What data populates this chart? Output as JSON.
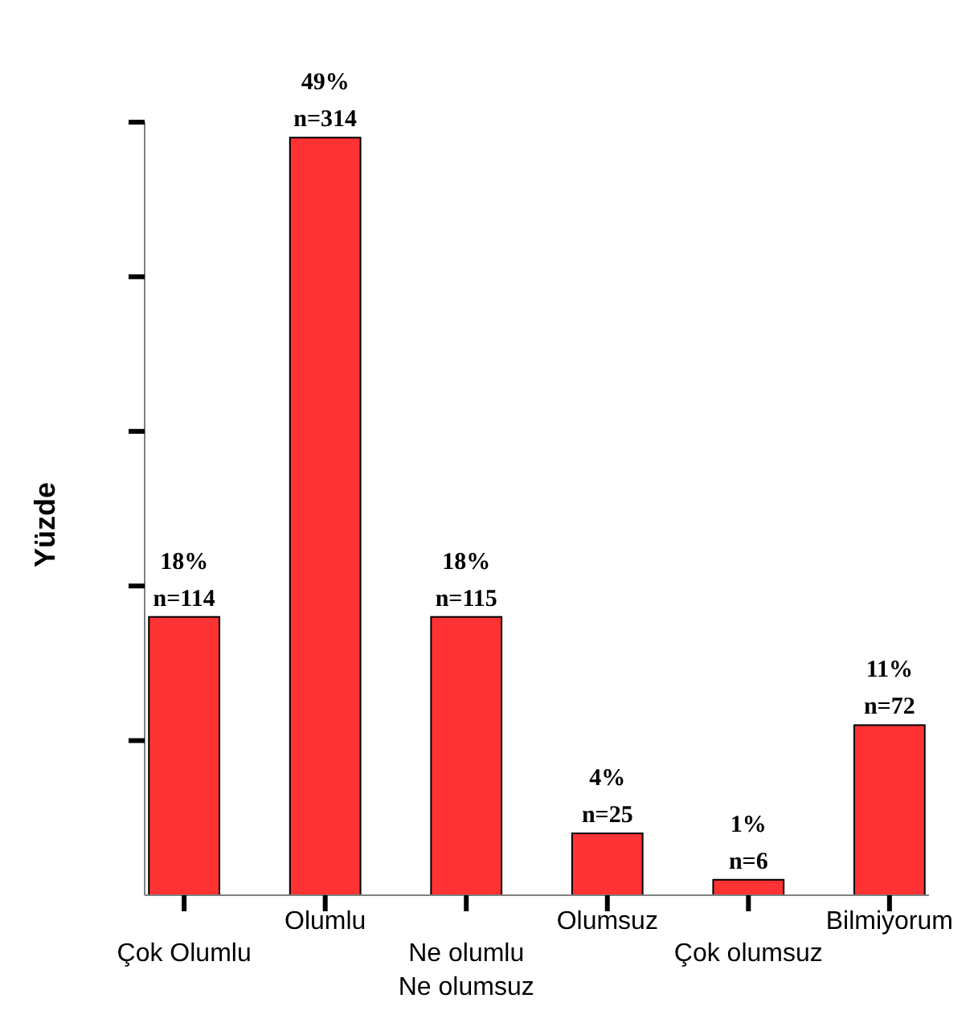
{
  "chart_data": {
    "type": "bar",
    "ylabel": "Yüzde",
    "categories": [
      "Çok Olumlu",
      "Olumlu",
      "Ne olumlu\nNe olumsuz",
      "Olumsuz",
      "Çok olumsuz",
      "Bilmiyorum"
    ],
    "values": [
      18,
      49,
      18,
      4,
      1,
      11
    ],
    "value_labels": [
      "18%",
      "49%",
      "18%",
      "4%",
      "1%",
      "11%"
    ],
    "annotations": [
      {
        "text": "n=114",
        "x": "Çok Olumlu",
        "y": 18
      },
      {
        "text": "n=314",
        "x": "Olumlu",
        "y": 49
      },
      {
        "text": "n=115",
        "x": "Ne olumlu\nNe olumsuz",
        "y": 18
      },
      {
        "text": "n=25",
        "x": "Olumsuz",
        "y": 4
      },
      {
        "text": "n=6",
        "x": "Çok olumsuz",
        "y": 1
      },
      {
        "text": "n=72",
        "x": "Bilmiyorum",
        "y": 11
      }
    ],
    "color": "#ff3333",
    "ylim": [
      0,
      50
    ],
    "yticks": [
      {
        "value": 10,
        "label": null
      },
      {
        "value": 20,
        "label": null
      },
      {
        "value": 30,
        "label": null
      },
      {
        "value": 40,
        "label": null
      },
      {
        "value": 50,
        "label": null
      }
    ],
    "grid": false
  }
}
